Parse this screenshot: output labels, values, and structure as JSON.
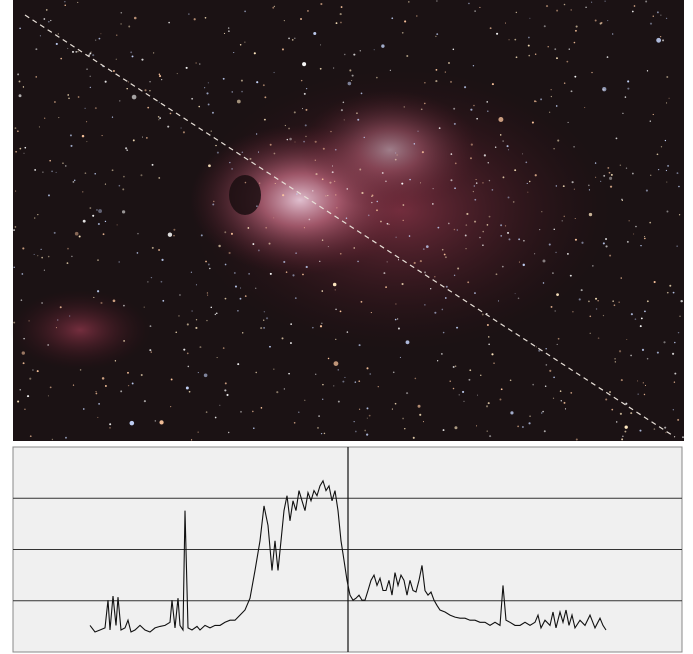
{
  "chart_data": {
    "type": "line",
    "x": [
      90,
      95,
      100,
      105,
      108,
      110,
      113,
      116,
      118,
      121,
      125,
      128,
      131,
      135,
      140,
      145,
      150,
      155,
      160,
      165,
      170,
      172,
      175,
      178,
      180,
      183,
      185,
      188,
      192,
      197,
      200,
      205,
      210,
      215,
      220,
      225,
      230,
      235,
      240,
      245,
      250,
      255,
      260,
      264,
      268,
      272,
      275,
      278,
      281,
      284,
      287,
      290,
      293,
      296,
      299,
      302,
      305,
      308,
      311,
      314,
      317,
      320,
      323,
      326,
      329,
      332,
      335,
      338,
      341,
      344,
      347,
      350,
      353,
      356,
      359,
      362,
      365,
      368,
      371,
      374,
      377,
      380,
      383,
      386,
      389,
      392,
      395,
      398,
      401,
      404,
      407,
      410,
      413,
      416,
      419,
      422,
      425,
      428,
      431,
      434,
      437,
      440,
      445,
      450,
      455,
      460,
      465,
      470,
      475,
      480,
      485,
      490,
      495,
      500,
      503,
      506,
      510,
      515,
      520,
      525,
      530,
      535,
      538,
      541,
      545,
      550,
      553,
      556,
      560,
      563,
      566,
      569,
      572,
      575,
      580,
      585,
      590,
      595,
      600,
      603,
      606
    ],
    "series": [
      {
        "color": "#111111",
        "values": [
          0.52,
          0.39,
          0.43,
          0.47,
          1.01,
          0.43,
          1.09,
          0.52,
          1.07,
          0.43,
          0.47,
          0.62,
          0.39,
          0.43,
          0.52,
          0.43,
          0.39,
          0.47,
          0.5,
          0.52,
          0.58,
          1.01,
          0.47,
          1.05,
          0.52,
          0.43,
          2.76,
          0.47,
          0.43,
          0.5,
          0.43,
          0.52,
          0.47,
          0.52,
          0.52,
          0.58,
          0.62,
          0.62,
          0.72,
          0.82,
          1.05,
          1.59,
          2.17,
          2.85,
          2.47,
          1.59,
          2.17,
          1.59,
          2.17,
          2.76,
          3.05,
          2.56,
          2.95,
          2.76,
          3.15,
          2.95,
          2.76,
          3.11,
          2.95,
          3.15,
          3.05,
          3.24,
          3.34,
          3.15,
          3.24,
          2.95,
          3.15,
          2.76,
          2.17,
          1.79,
          1.4,
          1.11,
          1.01,
          1.05,
          1.11,
          1.01,
          1.01,
          1.2,
          1.4,
          1.5,
          1.3,
          1.44,
          1.2,
          1.2,
          1.4,
          1.11,
          1.55,
          1.3,
          1.5,
          1.4,
          1.11,
          1.4,
          1.2,
          1.17,
          1.4,
          1.69,
          1.2,
          1.11,
          1.17,
          1.01,
          0.91,
          0.82,
          0.78,
          0.72,
          0.68,
          0.66,
          0.66,
          0.62,
          0.62,
          0.58,
          0.58,
          0.52,
          0.58,
          0.52,
          1.3,
          0.62,
          0.58,
          0.52,
          0.52,
          0.58,
          0.52,
          0.58,
          0.72,
          0.47,
          0.62,
          0.52,
          0.78,
          0.47,
          0.78,
          0.58,
          0.82,
          0.52,
          0.72,
          0.47,
          0.62,
          0.52,
          0.72,
          0.47,
          0.66,
          0.52,
          0.43
        ]
      }
    ],
    "xlim": [
      13,
      682
    ],
    "ylim": [
      0,
      4
    ],
    "yticks": [
      1,
      2,
      3
    ],
    "grid": true
  }
}
